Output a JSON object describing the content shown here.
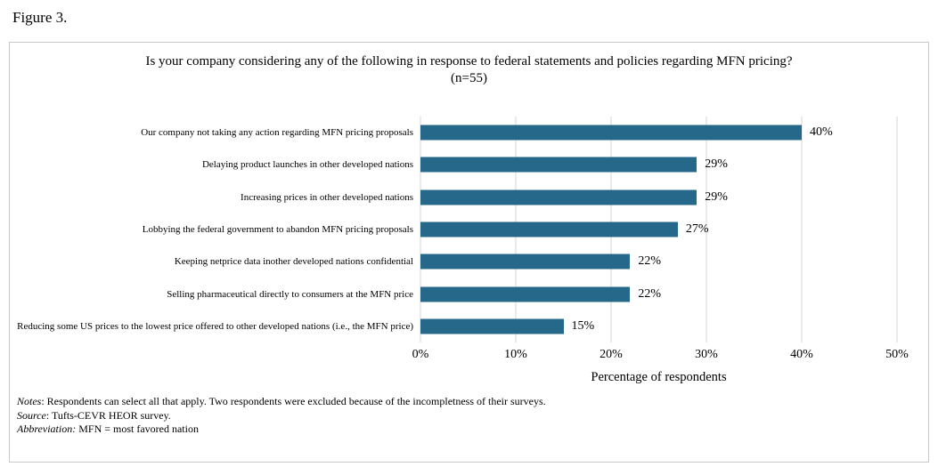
{
  "figure_label": "Figure 3.",
  "chart_data": {
    "type": "bar",
    "orientation": "horizontal",
    "title": "Is your company considering any of the following in response to federal statements and policies regarding MFN pricing?",
    "subtitle": "(n=55)",
    "categories": [
      "Our company not taking any action regarding MFN pricing proposals",
      "Delaying product launches in other developed nations",
      "Increasing prices in other developed nations",
      "Lobbying the federal government to abandon MFN pricing proposals",
      "Keeping netprice data inother developed nations confidential",
      "Selling pharmaceutical directly to consumers at the MFN price",
      "Reducing some US prices to the lowest price offered to other developed nations (i.e., the MFN price)"
    ],
    "values": [
      40,
      29,
      29,
      27,
      22,
      22,
      15
    ],
    "value_labels": [
      "40%",
      "29%",
      "29%",
      "27%",
      "22%",
      "22%",
      "15%"
    ],
    "xlabel": "Percentage of respondents",
    "xlim": [
      0,
      50
    ],
    "x_ticks": [
      "0%",
      "10%",
      "20%",
      "30%",
      "40%",
      "50%"
    ],
    "grid": "vertical-gridlines-on",
    "legend": "none",
    "bar_color": "#25688a",
    "gridline_color": "#d6d6d6"
  },
  "notes": {
    "lines": [
      {
        "lead": "Notes",
        "text": ": Respondents can select all that apply. Two respondents were excluded because of the incompletness of their surveys."
      },
      {
        "lead": "Source",
        "text": ": Tufts-CEVR HEOR survey."
      },
      {
        "lead": "Abbreviation:",
        "text": " MFN = most favored nation"
      }
    ]
  }
}
